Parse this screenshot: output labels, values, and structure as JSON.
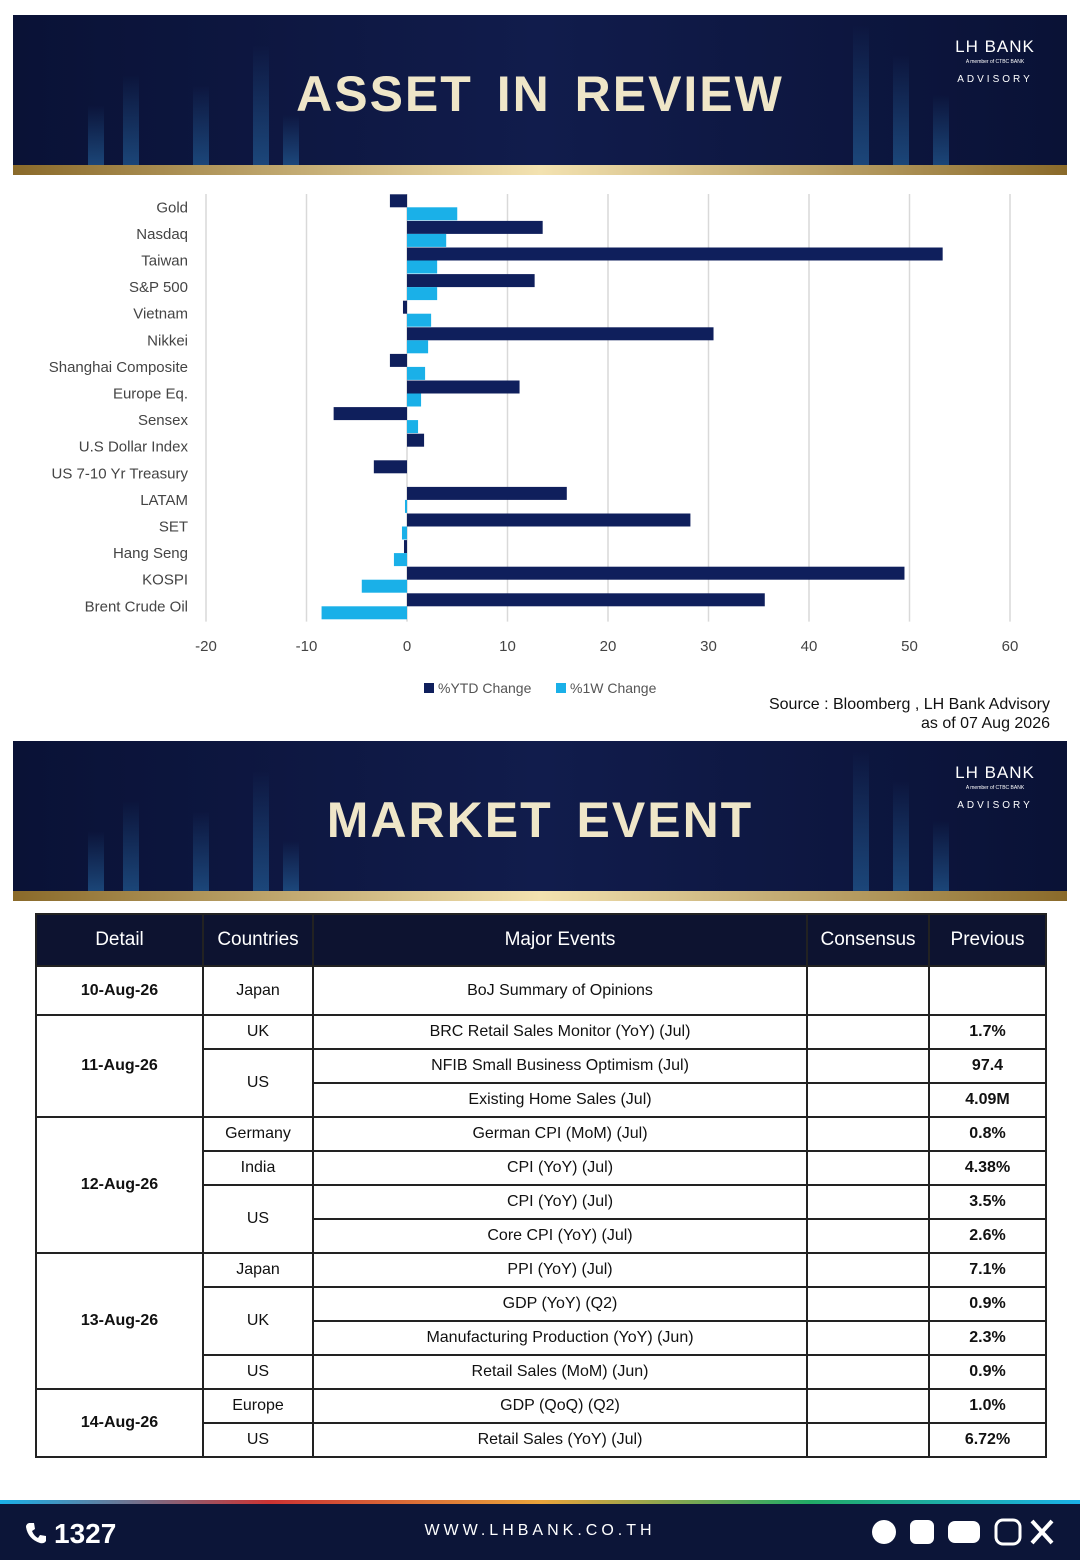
{
  "header": {
    "title": "ASSET IN REVIEW",
    "logo": "LH BANK",
    "logo_sub": "A member of CTBC BANK",
    "logo_tag": "ADVISORY"
  },
  "chart_data": {
    "type": "hbar",
    "categories": [
      "Gold",
      "Nasdaq",
      "Taiwan",
      "S&P 500",
      "Vietnam",
      "Nikkei",
      "Shanghai Composite",
      "Europe Eq.",
      "Sensex",
      "U.S Dollar Index",
      "US 7-10 Yr Treasury",
      "LATAM",
      "SET",
      "Hang Seng",
      "KOSPI",
      "Brent Crude Oil"
    ],
    "series": [
      {
        "name": "%YTD Change",
        "color": "#0f1f5c",
        "values": [
          -1.7,
          13.5,
          53.3,
          12.7,
          -0.4,
          30.5,
          -1.7,
          11.2,
          -7.3,
          1.7,
          -3.3,
          15.9,
          28.2,
          -0.3,
          49.5,
          35.6
        ]
      },
      {
        "name": "%1W Change",
        "color": "#1ab0e8",
        "values": [
          5.0,
          3.9,
          3.0,
          3.0,
          2.4,
          2.1,
          1.8,
          1.4,
          1.1,
          0,
          0,
          -0.2,
          -0.5,
          -1.3,
          -4.5,
          -8.5
        ]
      }
    ],
    "xlim": [
      -20,
      60
    ],
    "xticks": [
      -20,
      -10,
      0,
      10,
      20,
      30,
      40,
      50,
      60
    ],
    "grid": true,
    "legend": "bottom",
    "source": "Source : Bloomberg , LH Bank Advisory",
    "date": "as of 07 Aug 2026"
  },
  "section2": {
    "title": "MARKET EVENT",
    "logo": "LH BANK",
    "logo_sub": "A member of CTBC BANK",
    "logo_tag": "ADVISORY"
  },
  "table": {
    "header": [
      "Detail",
      "Countries",
      "Major Events",
      "Consensus",
      "Previous"
    ],
    "groups": [
      {
        "date": "10-Aug-26",
        "countries": [
          {
            "name": "Japan",
            "events": [
              {
                "event": "BoJ Summary of Opinions"
              }
            ]
          }
        ]
      },
      {
        "date": "11-Aug-26",
        "countries": [
          {
            "name": "UK",
            "events": [
              {
                "event": "BRC Retail Sales Monitor (YoY) (Jul)",
                "previous": "1.7%"
              }
            ]
          },
          {
            "name": "US",
            "events": [
              {
                "event": "NFIB Small Business Optimism  (Jul)",
                "previous": "97.4"
              },
              {
                "event": "Existing Home Sales  (Jul)",
                "previous": "4.09M"
              }
            ]
          }
        ]
      },
      {
        "date": "12-Aug-26",
        "countries": [
          {
            "name": "Germany",
            "events": [
              {
                "event": "German CPI (MoM) (Jul)",
                "previous": "0.8%"
              }
            ]
          },
          {
            "name": "India",
            "events": [
              {
                "event": "CPI (YoY) (Jul)",
                "previous": "4.38%"
              }
            ]
          },
          {
            "name": "US",
            "events": [
              {
                "event": "CPI (YoY) (Jul)",
                "previous": "3.5%"
              },
              {
                "event": "Core CPI (YoY) (Jul)",
                "previous": "2.6%"
              }
            ]
          }
        ]
      },
      {
        "date": "13-Aug-26",
        "countries": [
          {
            "name": "Japan",
            "events": [
              {
                "event": "PPI (YoY) (Jul)",
                "previous": "7.1%"
              }
            ]
          },
          {
            "name": "UK",
            "events": [
              {
                "event": "GDP (YoY) (Q2)",
                "previous": "0.9%"
              },
              {
                "event": "Manufacturing Production (YoY) (Jun)",
                "previous": "2.3%"
              }
            ]
          },
          {
            "name": "US",
            "events": [
              {
                "event": "Retail Sales (MoM) (Jun)",
                "previous": "0.9%"
              }
            ]
          }
        ]
      },
      {
        "date": "14-Aug-26",
        "countries": [
          {
            "name": "Europe",
            "events": [
              {
                "event": "GDP (QoQ) (Q2)",
                "previous": "1.0%"
              }
            ]
          },
          {
            "name": "US",
            "events": [
              {
                "event": "Retail Sales (YoY) (Jul)",
                "previous": "6.72%"
              }
            ]
          }
        ]
      }
    ]
  },
  "footer": {
    "phone": "1327",
    "url": "WWW.LHBANK.CO.TH"
  }
}
